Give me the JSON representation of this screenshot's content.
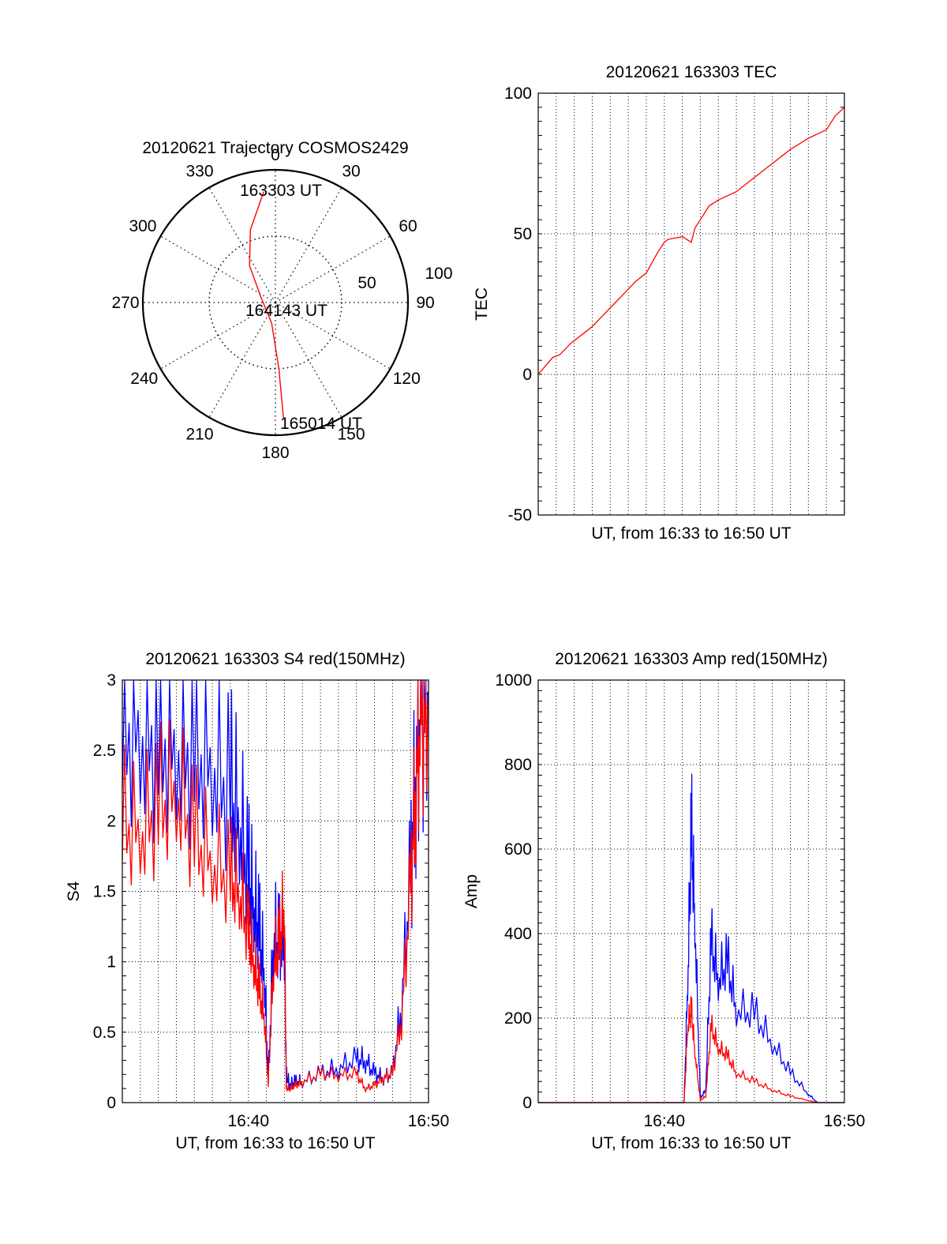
{
  "chart_data": [
    {
      "type": "polar-trajectory",
      "title": "20120621 Trajectory COSMOS2429",
      "angle_labels": [
        "0",
        "30",
        "60",
        "90",
        "120",
        "150",
        "180",
        "210",
        "240",
        "270",
        "300",
        "330"
      ],
      "radial_labels": [
        "50",
        "100"
      ],
      "radial_max": 100,
      "series": [
        {
          "color": "#ff0000",
          "points": [
            {
              "az": 354,
              "r": 84
            },
            {
              "az": 341,
              "r": 58
            },
            {
              "az": 325,
              "r": 34
            },
            {
              "az": 292,
              "r": 12
            },
            {
              "az": 190,
              "r": 16
            },
            {
              "az": 177,
              "r": 50
            },
            {
              "az": 176,
              "r": 88
            }
          ]
        }
      ],
      "annotations": [
        "163303 UT",
        "164143 UT",
        "165014 UT"
      ]
    },
    {
      "type": "line",
      "title": "20120621 163303 TEC",
      "xlabel": "UT, from 16:33 to 16:50 UT",
      "ylabel": "TEC",
      "xlim": [
        0,
        17
      ],
      "ylim": [
        -50,
        100
      ],
      "yticks": [
        "-50",
        "0",
        "50",
        "100"
      ],
      "xticks": [],
      "grid": true,
      "series": [
        {
          "color": "#ff0000",
          "x": [
            0,
            0.4,
            0.8,
            1.2,
            1.8,
            2.4,
            3.0,
            3.6,
            4.2,
            4.8,
            5.4,
            6.0,
            6.6,
            7.0,
            7.2,
            8.0,
            8.5,
            8.7,
            9.0,
            9.5,
            10,
            11,
            12,
            13,
            14,
            15,
            16,
            16.5,
            17
          ],
          "y": [
            0,
            3,
            6,
            7,
            11,
            14,
            17,
            21,
            25,
            29,
            33,
            36,
            43,
            47,
            48,
            49,
            47,
            52,
            55,
            60,
            62,
            65,
            70,
            75,
            80,
            84,
            87,
            92,
            95
          ]
        }
      ]
    },
    {
      "type": "line",
      "title": "20120621 163303 S4 red(150MHz)",
      "xlabel": "UT, from 16:33 to 16:50 UT",
      "ylabel": "S4",
      "xlim": [
        0,
        17
      ],
      "ylim": [
        0,
        3
      ],
      "yticks": [
        "0",
        "0.5",
        "1",
        "1.5",
        "2",
        "2.5",
        "3"
      ],
      "xticks": [
        "16:40",
        "16:50"
      ],
      "grid": true,
      "series": [
        {
          "color": "#0000ff",
          "x": [
            0,
            1,
            2,
            3,
            4,
            5,
            6,
            6.5,
            7,
            7.3,
            7.6,
            7.9,
            8.1,
            8.4,
            8.7,
            9,
            9.1,
            9.3,
            9.6,
            10,
            11,
            12,
            13,
            13.5,
            14,
            14.5,
            15,
            15.5,
            16,
            16.3,
            16.6,
            17
          ],
          "y": [
            2.7,
            2.6,
            2.6,
            2.5,
            2.5,
            2.4,
            2.2,
            2.0,
            1.6,
            1.4,
            1.2,
            0.9,
            0.15,
            1.2,
            1.1,
            1.2,
            0.2,
            0.13,
            0.15,
            0.15,
            0.2,
            0.25,
            0.3,
            0.3,
            0.2,
            0.18,
            0.2,
            0.7,
            1.6,
            2.4,
            2.8,
            2.9
          ]
        },
        {
          "color": "#ff0000",
          "x": [
            0,
            1,
            2,
            3,
            4,
            5,
            6,
            6.5,
            7,
            7.3,
            7.6,
            7.9,
            8.1,
            8.4,
            8.7,
            9,
            9.1,
            9.3,
            9.6,
            10,
            11,
            12,
            13,
            13.5,
            14,
            14.5,
            15,
            15.5,
            16,
            16.3,
            16.6,
            17
          ],
          "y": [
            2.0,
            1.9,
            2.1,
            2.2,
            1.9,
            1.7,
            1.6,
            1.5,
            1.2,
            1.0,
            0.8,
            0.6,
            0.12,
            1.0,
            1.1,
            1.4,
            0.1,
            0.1,
            0.12,
            0.15,
            0.2,
            0.2,
            0.2,
            0.1,
            0.12,
            0.18,
            0.2,
            0.6,
            1.5,
            2.3,
            2.7,
            2.8
          ]
        }
      ]
    },
    {
      "type": "line",
      "title": "20120621 163303 Amp red(150MHz)",
      "xlabel": "UT, from 16:33 to 16:50 UT",
      "ylabel": "Amp",
      "xlim": [
        0,
        17
      ],
      "ylim": [
        0,
        1000
      ],
      "yticks": [
        "0",
        "200",
        "400",
        "600",
        "800",
        "1000"
      ],
      "xticks": [
        "16:40",
        "16:50"
      ],
      "grid": true,
      "series": [
        {
          "color": "#0000ff",
          "x": [
            0,
            8,
            8.1,
            8.3,
            8.5,
            8.7,
            9,
            9.3,
            9.6,
            10,
            10.5,
            11,
            12,
            13,
            14,
            15,
            15.5,
            17
          ],
          "y": [
            0,
            0,
            0,
            280,
            650,
            430,
            10,
            30,
            380,
            290,
            330,
            220,
            210,
            140,
            70,
            20,
            0,
            0
          ]
        },
        {
          "color": "#ff0000",
          "x": [
            0,
            8,
            8.1,
            8.3,
            8.5,
            8.7,
            9,
            9.3,
            9.6,
            10,
            10.5,
            11,
            12,
            13,
            14,
            15,
            15.5,
            17
          ],
          "y": [
            0,
            0,
            0,
            180,
            220,
            120,
            5,
            15,
            180,
            130,
            110,
            70,
            50,
            30,
            15,
            5,
            0,
            0
          ]
        }
      ]
    }
  ]
}
